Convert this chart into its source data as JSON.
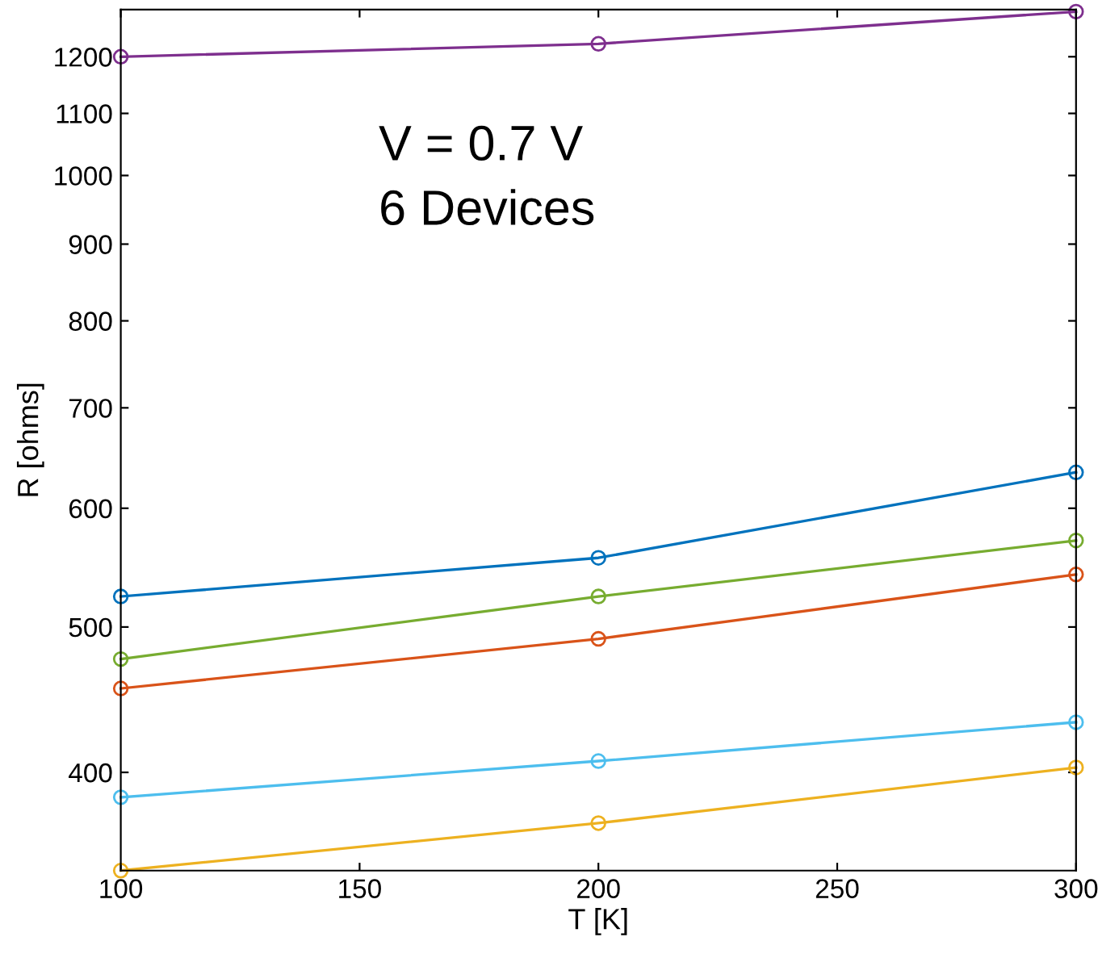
{
  "chart_data": {
    "type": "line",
    "xlabel": "T [K]",
    "ylabel": "R [ohms]",
    "log": "y",
    "marker": "circle",
    "line_style": "solid",
    "grid": false,
    "legend": false,
    "x": [
      100,
      200,
      300
    ],
    "xlim": [
      100,
      300
    ],
    "xticks": [
      100,
      150,
      200,
      250,
      300
    ],
    "ylim": [
      344,
      1290
    ],
    "yticks": [
      400,
      500,
      600,
      700,
      800,
      900,
      1000,
      1100,
      1200
    ],
    "annotations": [
      "V = 0.7 V",
      "6 Devices"
    ],
    "series": [
      {
        "color": "#7e2f8e",
        "values": [
          1200,
          1224,
          1286
        ]
      },
      {
        "color": "#0072bd",
        "values": [
          524,
          556,
          634
        ]
      },
      {
        "color": "#77ac30",
        "values": [
          476,
          524,
          571
        ]
      },
      {
        "color": "#d95319",
        "values": [
          455,
          491,
          542
        ]
      },
      {
        "color": "#4dbeee",
        "values": [
          385,
          407,
          432
        ]
      },
      {
        "color": "#edb120",
        "values": [
          344,
          370,
          403
        ]
      }
    ]
  }
}
